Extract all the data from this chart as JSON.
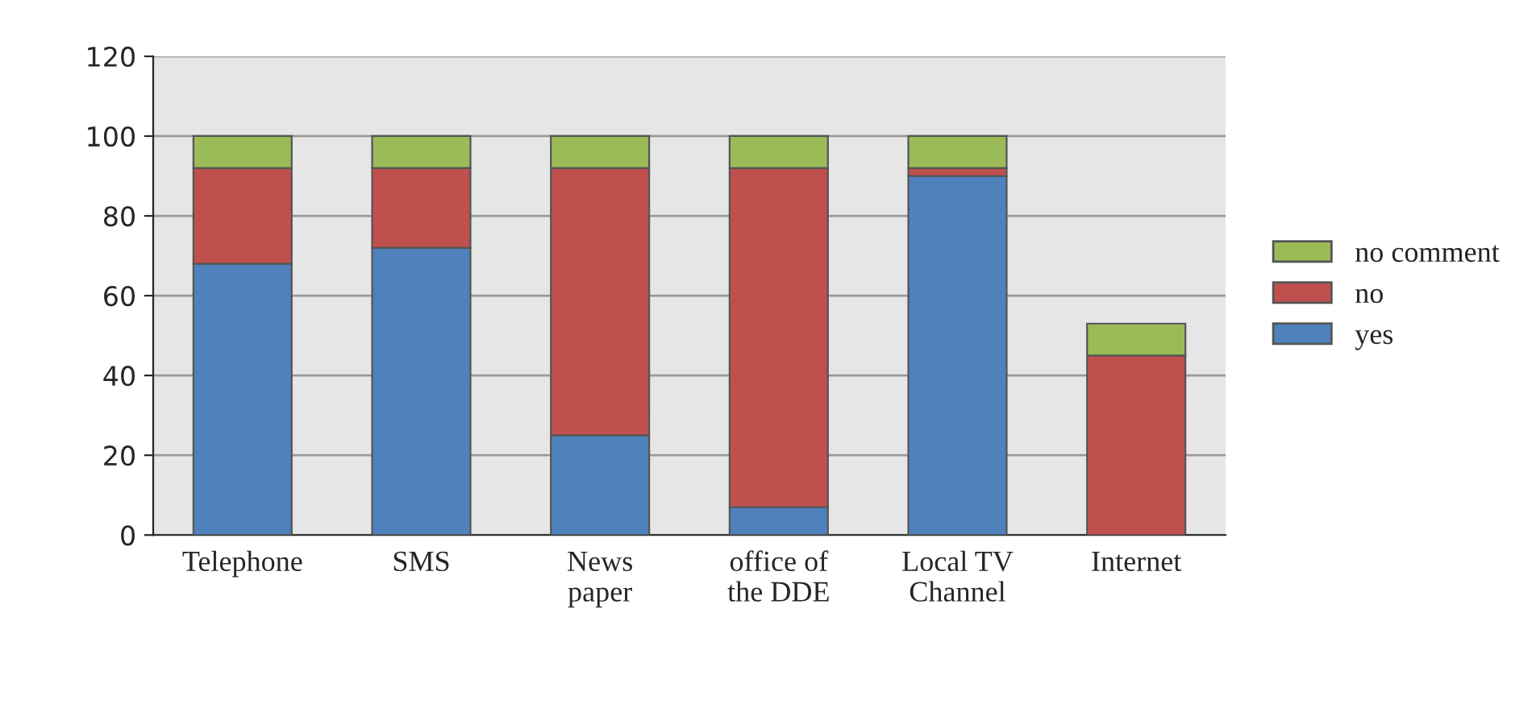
{
  "chart_data": {
    "type": "bar",
    "stacked": true,
    "categories": [
      "Telephone",
      "SMS",
      "News\npaper",
      "office of\nthe DDE",
      "Local TV\nChannel",
      "Internet"
    ],
    "series": [
      {
        "name": "yes",
        "color": "#4f81bd",
        "values": [
          68,
          72,
          25,
          7,
          90,
          0
        ]
      },
      {
        "name": "no",
        "color": "#c0504d",
        "values": [
          24,
          20,
          67,
          85,
          2,
          45
        ]
      },
      {
        "name": "no comment",
        "color": "#9bbb59",
        "values": [
          8,
          8,
          8,
          8,
          8,
          8
        ]
      }
    ],
    "ylim": [
      0,
      120
    ],
    "yticks": [
      0,
      20,
      40,
      60,
      80,
      100,
      120
    ],
    "grid": "y",
    "legend": "right"
  }
}
